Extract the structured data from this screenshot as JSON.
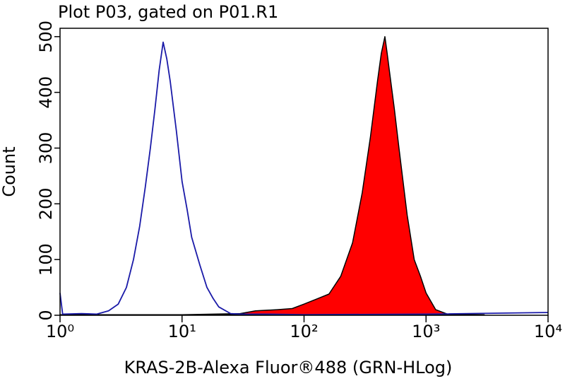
{
  "chart_data": {
    "type": "area",
    "title": "Plot P03, gated on P01.R1",
    "xlabel": "KRAS-2B-Alexa Fluor®488 (GRN-HLog)",
    "ylabel": "Count",
    "xscale": "log",
    "xlim": [
      1,
      10000
    ],
    "xticks": [
      {
        "value": 1,
        "label": "10⁰"
      },
      {
        "value": 10,
        "label": "10¹"
      },
      {
        "value": 100,
        "label": "10²"
      },
      {
        "value": 1000,
        "label": "10³"
      },
      {
        "value": 10000,
        "label": "10⁴"
      }
    ],
    "ylim": [
      0,
      515
    ],
    "yticks": [
      0,
      100,
      200,
      300,
      400,
      500
    ],
    "series": [
      {
        "color": "#1a1aa8",
        "filled": false,
        "x": [
          1,
          1.05,
          1.5,
          2,
          2.5,
          3,
          3.5,
          4,
          4.5,
          5,
          5.5,
          6,
          6.5,
          7,
          7.5,
          8,
          9,
          10,
          11,
          12,
          14,
          16,
          18,
          20,
          25,
          30,
          50,
          100,
          1000,
          10000
        ],
        "values": [
          40,
          2,
          3,
          2,
          8,
          20,
          50,
          100,
          160,
          230,
          300,
          370,
          440,
          490,
          460,
          420,
          330,
          240,
          190,
          140,
          90,
          50,
          30,
          15,
          3,
          2,
          2,
          1,
          2,
          5
        ]
      },
      {
        "color": "#ff0000",
        "filled": true,
        "x": [
          1,
          10,
          30,
          40,
          60,
          80,
          100,
          130,
          160,
          200,
          250,
          300,
          350,
          400,
          430,
          460,
          480,
          500,
          550,
          600,
          700,
          800,
          900,
          1000,
          1200,
          1500,
          3000
        ],
        "values": [
          1,
          1,
          3,
          8,
          10,
          12,
          20,
          30,
          38,
          70,
          130,
          220,
          320,
          420,
          470,
          500,
          470,
          440,
          370,
          300,
          180,
          100,
          70,
          40,
          10,
          2,
          1
        ]
      }
    ]
  }
}
